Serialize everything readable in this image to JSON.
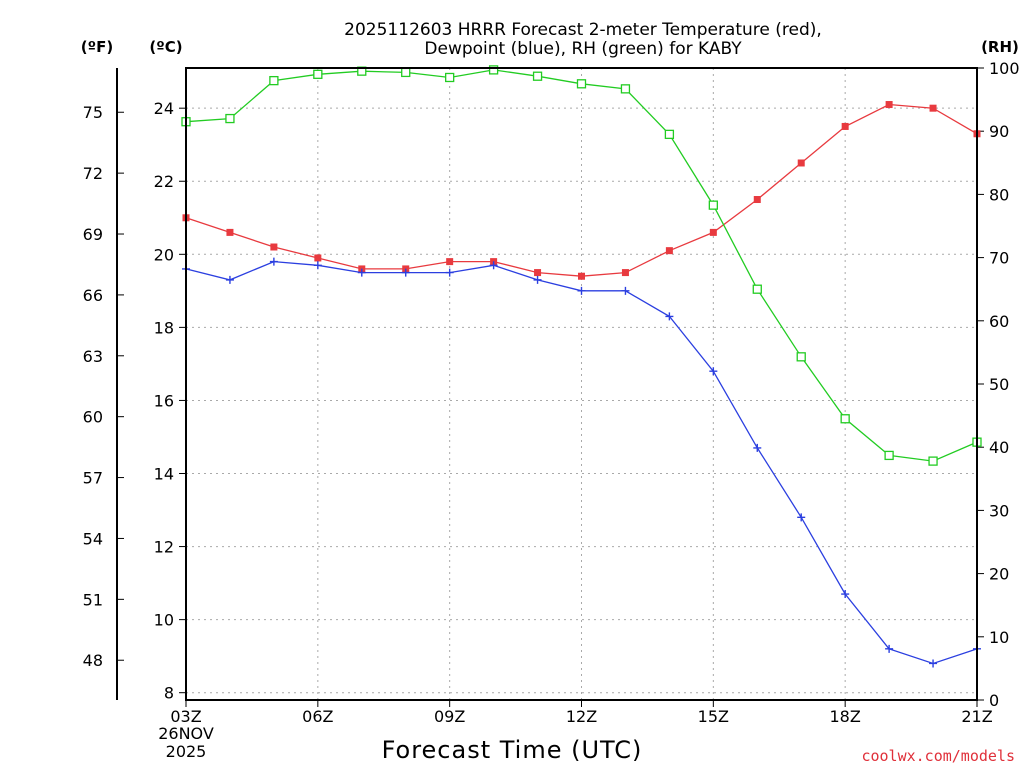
{
  "chart_data": {
    "type": "line",
    "title_line1": "2025112603 HRRR Forecast 2-meter Temperature (red),",
    "title_line2": "Dewpoint (blue), RH (green) for KABY",
    "xlabel": "Forecast Time (UTC)",
    "credit": "coolwx.com/models",
    "units": {
      "fahrenheit": "(ºF)",
      "celsius": "(ºC)",
      "rh": "(RH)"
    },
    "date_label": [
      "26NOV",
      "2025"
    ],
    "x_hours": [
      3,
      4,
      5,
      6,
      7,
      8,
      9,
      10,
      11,
      12,
      13,
      14,
      15,
      16,
      17,
      18,
      19,
      20,
      21
    ],
    "xlim": [
      3,
      21
    ],
    "x_ticks": [
      {
        "hour": 3,
        "label": "03Z"
      },
      {
        "hour": 6,
        "label": "06Z"
      },
      {
        "hour": 9,
        "label": "09Z"
      },
      {
        "hour": 12,
        "label": "12Z"
      },
      {
        "hour": 15,
        "label": "15Z"
      },
      {
        "hour": 18,
        "label": "18Z"
      },
      {
        "hour": 21,
        "label": "21Z"
      }
    ],
    "celsius_axis": {
      "ylim": [
        7.8,
        25.1
      ],
      "ticks": [
        "8",
        "10",
        "12",
        "14",
        "16",
        "18",
        "20",
        "22",
        "24"
      ]
    },
    "fahrenheit_ticks": [
      "48",
      "51",
      "54",
      "57",
      "60",
      "63",
      "66",
      "69",
      "72",
      "75"
    ],
    "rh_axis": {
      "ylim": [
        0,
        100
      ],
      "ticks": [
        "0",
        "10",
        "20",
        "30",
        "40",
        "50",
        "60",
        "70",
        "80",
        "90",
        "100"
      ]
    },
    "series": [
      {
        "name": "Temperature",
        "axis": "celsius",
        "color": "#e83a3f",
        "marker": "filled-square",
        "values": [
          21.0,
          20.6,
          20.2,
          19.9,
          19.6,
          19.6,
          19.8,
          19.8,
          19.5,
          19.4,
          19.5,
          20.1,
          20.6,
          21.5,
          22.5,
          23.5,
          24.1,
          24.0,
          23.3
        ]
      },
      {
        "name": "Dewpoint",
        "axis": "celsius",
        "color": "#2b3fe0",
        "marker": "plus",
        "values": [
          19.6,
          19.3,
          19.8,
          19.7,
          19.5,
          19.5,
          19.5,
          19.7,
          19.3,
          19.0,
          19.0,
          18.3,
          16.8,
          14.7,
          12.8,
          10.7,
          9.2,
          8.8,
          9.2
        ]
      },
      {
        "name": "RH",
        "axis": "rh",
        "color": "#22cc22",
        "marker": "open-square",
        "values": [
          91.5,
          92.0,
          98.0,
          99.0,
          99.5,
          99.3,
          98.5,
          99.7,
          98.7,
          97.5,
          96.7,
          89.5,
          78.3,
          65.0,
          54.3,
          44.5,
          38.7,
          37.8,
          40.8
        ]
      }
    ]
  }
}
